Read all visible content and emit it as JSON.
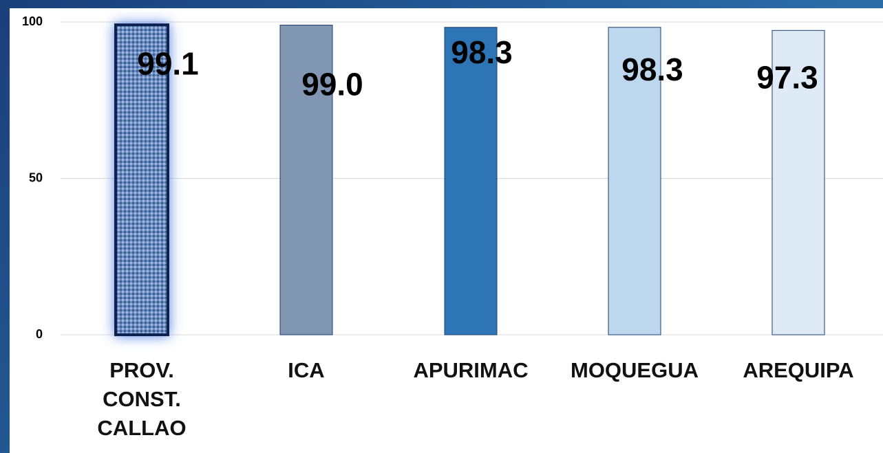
{
  "chart_data": {
    "type": "bar",
    "categories": [
      "PROV. CONST. CALLAO",
      "ICA",
      "APURIMAC",
      "MOQUEGUA",
      "AREQUIPA"
    ],
    "values": [
      99.1,
      99.0,
      98.3,
      98.3,
      97.3
    ],
    "value_labels": [
      "99.1",
      "99.0",
      "98.3",
      "98.3",
      "97.3"
    ],
    "colors": [
      "#5f82b8",
      "#8096b3",
      "#2e75b6",
      "#bdd7ee",
      "#deebf7"
    ],
    "ylim": [
      0,
      100
    ],
    "yticks": [
      0,
      50,
      100
    ],
    "grid": true
  }
}
